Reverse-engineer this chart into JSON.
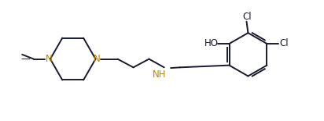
{
  "bg_color": "#ffffff",
  "line_color": "#1a1a2e",
  "text_color": "#1a1a2e",
  "n_color": "#b8860b",
  "line_width": 1.4,
  "font_size": 8.5,
  "figsize": [
    4.12,
    1.55
  ],
  "dpi": 100,
  "xlim": [
    0,
    10.5
  ],
  "ylim": [
    0,
    4.0
  ]
}
